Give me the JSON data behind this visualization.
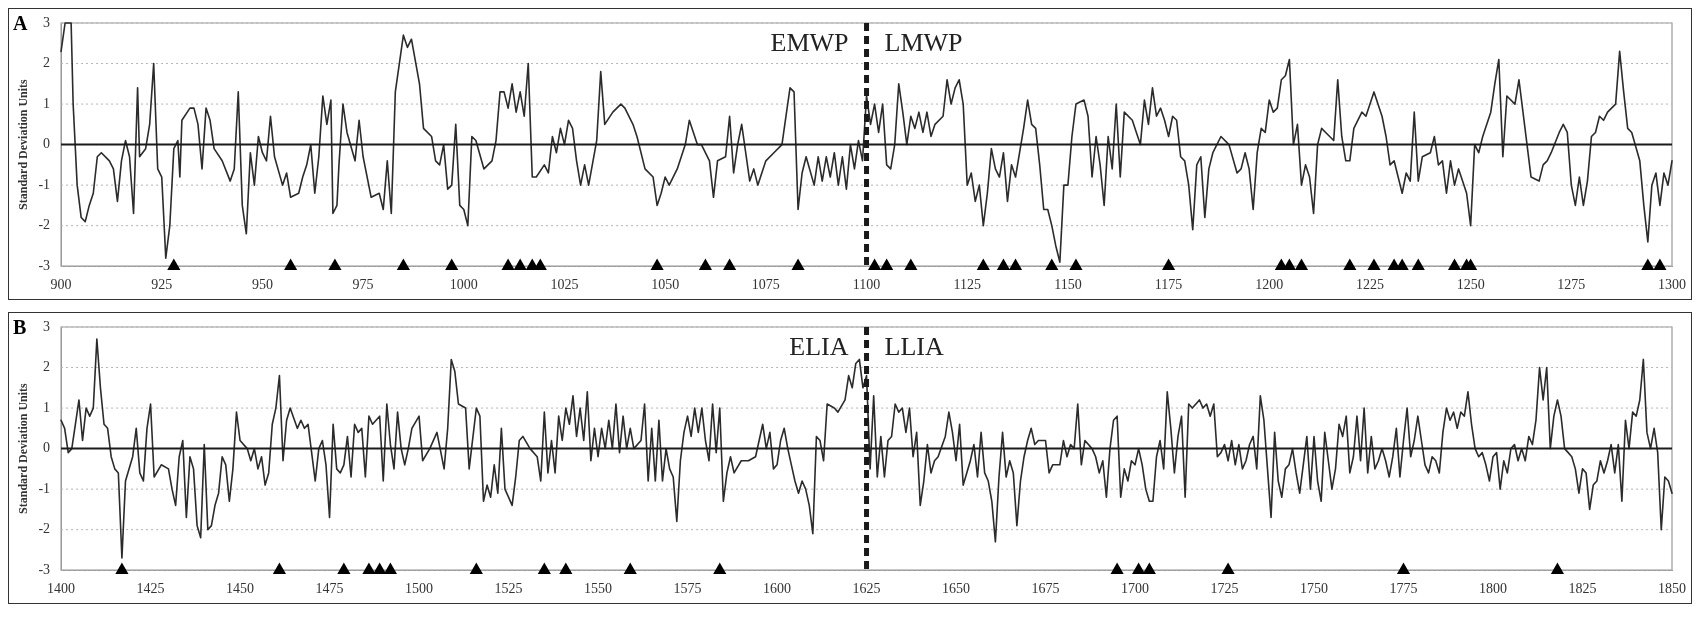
{
  "chart_data": [
    {
      "type": "line",
      "title": "A",
      "ylabel": "Standard Deviation Units",
      "xlim": [
        900,
        1300
      ],
      "xticks": [
        900,
        925,
        950,
        975,
        1000,
        1025,
        1050,
        1075,
        1100,
        1125,
        1150,
        1175,
        1200,
        1225,
        1250,
        1275,
        1300
      ],
      "ylim": [
        -3,
        3
      ],
      "yticks": [
        -3,
        -2,
        -1,
        0,
        1,
        2,
        3
      ],
      "grid": "y",
      "marker": "none",
      "annotations": [
        "EMWP",
        "LMWP"
      ],
      "ref_lines": [
        {
          "axis": "x",
          "value": 1100,
          "color": "#1a1a1a",
          "line_style": "dashed"
        },
        {
          "axis": "y",
          "value": 0,
          "color": "#1a1a1a",
          "line_style": "solid"
        }
      ],
      "series": [
        {
          "color": "#2b2b2b",
          "x": [
            900,
            901,
            902.5,
            903,
            904,
            905,
            906,
            907,
            908,
            909,
            910,
            912,
            913,
            914,
            915,
            916,
            917,
            918,
            919,
            919.5,
            921,
            922,
            923,
            924,
            925,
            926,
            927,
            928,
            929,
            929.5,
            930,
            932,
            933,
            934,
            935,
            936,
            937,
            938,
            940,
            942,
            943,
            944,
            945,
            946,
            947,
            948,
            949,
            950,
            951,
            952,
            953,
            955,
            956,
            957,
            959,
            960,
            961,
            962,
            963,
            964,
            965,
            966,
            967,
            967.5,
            968.5,
            969,
            970,
            971,
            973,
            974,
            975,
            977,
            979,
            980,
            981,
            982,
            983,
            985,
            986,
            987,
            989,
            990,
            992,
            993,
            994,
            995,
            996,
            997,
            998,
            999,
            1000,
            1001,
            1002,
            1003,
            1005,
            1007,
            1008,
            1009,
            1010,
            1011,
            1012,
            1013,
            1014,
            1015,
            1016,
            1017,
            1018,
            1020,
            1021,
            1022,
            1023,
            1024,
            1025,
            1026,
            1027,
            1028,
            1029,
            1030,
            1031,
            1033,
            1034,
            1035,
            1037,
            1039,
            1040,
            1042,
            1043,
            1045,
            1047,
            1048,
            1049,
            1050,
            1051,
            1053,
            1055,
            1056,
            1058,
            1059,
            1061,
            1062,
            1063,
            1065,
            1066,
            1067,
            1068,
            1069,
            1071,
            1072,
            1073,
            1075,
            1077,
            1079,
            1080,
            1081,
            1082,
            1083,
            1084,
            1085,
            1087,
            1088,
            1089,
            1090,
            1091,
            1092,
            1093,
            1094,
            1095,
            1096,
            1097,
            1098,
            1099,
            1100,
            1101,
            1102,
            1103,
            1104,
            1105,
            1106,
            1107,
            1108,
            1109,
            1110,
            1111,
            1112,
            1113,
            1114,
            1115,
            1116,
            1117,
            1119,
            1120,
            1121,
            1122,
            1123,
            1124,
            1125,
            1126,
            1127,
            1128,
            1129,
            1130,
            1131,
            1132,
            1133,
            1134,
            1135,
            1136,
            1137,
            1139,
            1140,
            1141,
            1142,
            1143,
            1144,
            1145,
            1146,
            1147,
            1148,
            1149,
            1150,
            1151,
            1152,
            1154,
            1155,
            1156,
            1157,
            1158,
            1159,
            1160,
            1161,
            1162,
            1163,
            1164,
            1166,
            1167,
            1168,
            1169,
            1170,
            1171,
            1172,
            1173,
            1174,
            1175,
            1176,
            1177,
            1178,
            1179,
            1180,
            1181,
            1182,
            1183,
            1184,
            1185,
            1186,
            1188,
            1190,
            1192,
            1193,
            1194,
            1195,
            1196,
            1197,
            1198,
            1199,
            1200,
            1201,
            1202,
            1203,
            1204,
            1205,
            1206,
            1207,
            1208,
            1209,
            1210,
            1211,
            1212,
            1213,
            1214,
            1216,
            1217,
            1218,
            1219,
            1220,
            1221,
            1223,
            1224,
            1226,
            1228,
            1229,
            1230,
            1231,
            1232,
            1233,
            1234,
            1235,
            1236,
            1237,
            1238,
            1240,
            1241,
            1242,
            1243,
            1244,
            1245,
            1246,
            1247,
            1248,
            1249,
            1250,
            1251,
            1252,
            1253,
            1255,
            1256,
            1257,
            1258,
            1259,
            1261,
            1262,
            1263,
            1265,
            1267,
            1268,
            1269,
            1270,
            1272,
            1273,
            1274,
            1275,
            1276,
            1277,
            1278,
            1279,
            1280,
            1281,
            1282,
            1283,
            1284,
            1286,
            1287,
            1288,
            1289,
            1290,
            1292,
            1293,
            1294,
            1295,
            1296,
            1297,
            1298,
            1299,
            1300
          ],
          "values": [
            2.3,
            3,
            3,
            1,
            -1,
            -1.8,
            -1.9,
            -1.5,
            -1.2,
            -0.3,
            -0.2,
            -0.4,
            -0.6,
            -1.4,
            -0.4,
            0.1,
            -0.3,
            -1.7,
            1.4,
            -0.3,
            -0.1,
            0.5,
            2.0,
            -0.6,
            -0.8,
            -2.8,
            -2.0,
            -0.1,
            0.1,
            -0.8,
            0.6,
            0.9,
            0.9,
            0.5,
            -0.6,
            0.9,
            0.6,
            -0.1,
            -0.4,
            -0.9,
            -0.6,
            1.3,
            -1.5,
            -2.2,
            -0.2,
            -1.0,
            0.2,
            -0.2,
            -0.4,
            0.7,
            -0.3,
            -1.0,
            -0.7,
            -1.3,
            -1.2,
            -0.8,
            -0.5,
            0.0,
            -1.2,
            -0.3,
            1.2,
            0.5,
            1.1,
            -1.7,
            -1.5,
            -0.5,
            1.0,
            0.3,
            -0.4,
            0.6,
            -0.3,
            -1.3,
            -1.2,
            -1.6,
            -0.4,
            -1.7,
            1.3,
            2.7,
            2.4,
            2.6,
            1.5,
            0.4,
            0.2,
            -0.4,
            -0.5,
            0,
            -1.1,
            -1.0,
            0.5,
            -1.5,
            -1.6,
            -2.0,
            0.2,
            0.1,
            -0.6,
            -0.4,
            0.1,
            1.3,
            1.3,
            0.9,
            1.5,
            0.8,
            1.3,
            0.7,
            2.0,
            -0.8,
            -0.8,
            -0.5,
            -0.7,
            0.2,
            -0.2,
            0.4,
            0.0,
            0.6,
            0.4,
            -0.4,
            -1.0,
            -0.5,
            -1.0,
            0.1,
            1.8,
            0.5,
            0.8,
            1.0,
            0.9,
            0.5,
            0.2,
            -0.6,
            -0.8,
            -1.5,
            -1.2,
            -0.8,
            -1.0,
            -0.6,
            0.0,
            0.6,
            0.0,
            0.0,
            -0.4,
            -1.3,
            -0.4,
            -0.3,
            0.7,
            -0.7,
            0.0,
            0.5,
            -0.9,
            -0.6,
            -1.0,
            -0.4,
            -0.2,
            0.0,
            0.7,
            1.4,
            1.3,
            -1.6,
            -0.7,
            -0.3,
            -1.0,
            -0.3,
            -0.9,
            -0.3,
            -0.8,
            -0.2,
            -1.0,
            -0.3,
            -1.1,
            0.0,
            -0.6,
            0.1,
            -0.4,
            1.2,
            0.5,
            1.0,
            0.3,
            1.0,
            -0.5,
            -0.6,
            0.0,
            1.5,
            0.8,
            0.0,
            0.7,
            0.4,
            0.8,
            0.3,
            0.8,
            0.2,
            0.5,
            0.7,
            1.6,
            1.0,
            1.4,
            1.6,
            1.0,
            -1.0,
            -0.7,
            -1.4,
            -1.0,
            -2.0,
            -1.2,
            -0.1,
            -0.6,
            -0.8,
            -0.2,
            -1.4,
            -0.5,
            -0.8,
            0.4,
            1.1,
            0.5,
            0.4,
            -0.5,
            -1.6,
            -1.6,
            -2.0,
            -2.5,
            -2.9,
            -1.0,
            -1.0,
            0.2,
            1.0,
            1.1,
            0.7,
            -0.8,
            0.2,
            -0.5,
            -1.5,
            0.2,
            -0.6,
            1.0,
            -0.8,
            0.8,
            0.6,
            0.3,
            0.0,
            1.1,
            0.5,
            1.4,
            0.7,
            0.9,
            0.6,
            0.2,
            0.7,
            0.6,
            -0.3,
            -0.4,
            -1.0,
            -2.1,
            -0.5,
            -0.3,
            -1.8,
            -0.6,
            -0.2,
            0.2,
            0.0,
            -0.7,
            -0.6,
            -0.2,
            -0.6,
            -1.6,
            -0.2,
            0.4,
            0.3,
            1.1,
            0.8,
            0.9,
            1.6,
            1.7,
            2.1,
            0.0,
            0.5,
            -1.0,
            -0.5,
            -0.8,
            -1.7,
            0.0,
            0.4,
            0.3,
            0.1,
            1.6,
            0.2,
            -0.4,
            -0.4,
            0.4,
            0.8,
            0.7,
            1.3,
            0.7,
            0.2,
            -0.5,
            -0.4,
            -0.8,
            -1.2,
            -0.7,
            -0.9,
            0.8,
            -0.9,
            -0.3,
            -0.2,
            0.2,
            -0.5,
            -0.4,
            -1.2,
            -0.4,
            -1.0,
            -0.6,
            -0.9,
            -1.2,
            -2.0,
            0.0,
            -0.2,
            0.2,
            0.8,
            1.5,
            2.1,
            -0.3,
            1.2,
            1.0,
            1.6,
            0.8,
            -0.8,
            -0.9,
            -0.5,
            -0.4,
            -0.2,
            0.3,
            0.5,
            0.3,
            -1.0,
            -1.5,
            -0.8,
            -1.5,
            -0.9,
            0.2,
            0.3,
            0.7,
            0.6,
            0.8,
            1.0,
            2.3,
            1.3,
            0.4,
            0.3,
            -0.4,
            -1.5,
            -2.4,
            -1.0,
            -0.7,
            -1.5,
            -0.7,
            -1.0,
            -0.4
          ]
        },
        {
          "type": "scatter",
          "color": "#000000",
          "marker": "triangle",
          "x": [
            928,
            957,
            968,
            985,
            997,
            1011,
            1014,
            1017,
            1019,
            1048,
            1060,
            1066,
            1083,
            1102,
            1105,
            1111,
            1129,
            1134,
            1137,
            1146,
            1152,
            1175,
            1203,
            1205,
            1208,
            1220,
            1226,
            1231,
            1233,
            1237,
            1246,
            1249,
            1250,
            1294,
            1297
          ],
          "values": [
            -3,
            -3,
            -3,
            -3,
            -3,
            -3,
            -3,
            -3,
            -3,
            -3,
            -3,
            -3,
            -3,
            -3,
            -3,
            -3,
            -3,
            -3,
            -3,
            -3,
            -3,
            -3,
            -3,
            -3,
            -3,
            -3,
            -3,
            -3,
            -3,
            -3,
            -3,
            -3,
            -3,
            -3,
            -3
          ]
        }
      ]
    },
    {
      "type": "line",
      "title": "B",
      "ylabel": "Standard Deviation Units",
      "xlim": [
        1400,
        1850
      ],
      "xticks": [
        1400,
        1425,
        1450,
        1475,
        1500,
        1525,
        1550,
        1575,
        1600,
        1625,
        1650,
        1675,
        1700,
        1725,
        1750,
        1775,
        1800,
        1825,
        1850
      ],
      "ylim": [
        -3,
        3
      ],
      "yticks": [
        -3,
        -2,
        -1,
        0,
        1,
        2,
        3
      ],
      "grid": "y",
      "marker": "none",
      "annotations": [
        "ELIA",
        "LLIA"
      ],
      "ref_lines": [
        {
          "axis": "x",
          "value": 1625,
          "color": "#1a1a1a",
          "line_style": "dashed"
        },
        {
          "axis": "y",
          "value": 0,
          "color": "#1a1a1a",
          "line_style": "solid"
        }
      ],
      "series": [
        {
          "color": "#2b2b2b",
          "x": [
            1400,
            1401,
            1402,
            1403,
            1404,
            1405,
            1406,
            1407,
            1408,
            1409,
            1410,
            1411,
            1412,
            1413,
            1414,
            1415,
            1416,
            1417,
            1418,
            1420,
            1421,
            1422,
            1423,
            1424,
            1425,
            1426,
            1428,
            1430,
            1431,
            1432,
            1433,
            1434,
            1435,
            1436,
            1437,
            1438,
            1439,
            1440,
            1441,
            1442,
            1443,
            1444,
            1445,
            1446,
            1447,
            1448,
            1449,
            1450,
            1452,
            1453,
            1454,
            1455,
            1456,
            1457,
            1458,
            1459,
            1460,
            1461,
            1462,
            1463,
            1464,
            1466,
            1467,
            1468,
            1469,
            1471,
            1472,
            1473,
            1474,
            1475,
            1476,
            1477,
            1478,
            1479,
            1480,
            1481,
            1482,
            1483,
            1484,
            1485,
            1486,
            1487,
            1488,
            1489,
            1490,
            1491,
            1492,
            1493,
            1494,
            1495,
            1496,
            1497,
            1498,
            1500,
            1501,
            1503,
            1505,
            1507,
            1508,
            1509,
            1510,
            1511,
            1513,
            1514,
            1516,
            1517,
            1518,
            1519,
            1520,
            1521,
            1522,
            1523,
            1524,
            1526,
            1527,
            1528,
            1529,
            1531,
            1533,
            1534,
            1535,
            1536,
            1537,
            1538,
            1539,
            1540,
            1541,
            1542,
            1543,
            1544,
            1545,
            1546,
            1547,
            1548,
            1549,
            1550,
            1551,
            1552,
            1553,
            1554,
            1555,
            1556,
            1557,
            1558,
            1559,
            1560,
            1562,
            1563,
            1564,
            1565,
            1566,
            1567,
            1568,
            1569,
            1570,
            1571,
            1572,
            1573,
            1574,
            1575,
            1576,
            1577,
            1578,
            1579,
            1580,
            1581,
            1582,
            1583,
            1584,
            1585,
            1586,
            1587,
            1588,
            1590,
            1592,
            1594,
            1595,
            1596,
            1597,
            1598,
            1599,
            1600,
            1601,
            1602,
            1603,
            1604,
            1605,
            1606,
            1607,
            1608,
            1609,
            1610,
            1611,
            1612,
            1613,
            1614,
            1616,
            1617,
            1619,
            1620,
            1621,
            1622,
            1623,
            1624,
            1625,
            1626,
            1627,
            1628,
            1629,
            1630,
            1631,
            1632,
            1633,
            1634,
            1635,
            1636,
            1637,
            1638,
            1639,
            1640,
            1641,
            1642,
            1643,
            1644,
            1645,
            1647,
            1648,
            1649,
            1650,
            1651,
            1652,
            1653,
            1654,
            1655,
            1656,
            1657,
            1658,
            1659,
            1660,
            1661,
            1662,
            1663,
            1664,
            1665,
            1666,
            1667,
            1668,
            1669,
            1670,
            1671,
            1672,
            1673,
            1675,
            1676,
            1677,
            1679,
            1680,
            1681,
            1682,
            1683,
            1684,
            1685,
            1686,
            1688,
            1689,
            1690,
            1691,
            1692,
            1693,
            1694,
            1695,
            1696,
            1697,
            1698,
            1699,
            1700,
            1701,
            1702,
            1703,
            1704,
            1705,
            1706,
            1707,
            1708,
            1709,
            1710,
            1711,
            1712,
            1713,
            1714,
            1715,
            1716,
            1717,
            1718,
            1719,
            1720,
            1721,
            1722,
            1723,
            1724,
            1725,
            1726,
            1727,
            1728,
            1729,
            1730,
            1731,
            1732,
            1733,
            1734,
            1735,
            1736,
            1737,
            1738,
            1739,
            1740,
            1741,
            1742,
            1743,
            1744,
            1745,
            1746,
            1747,
            1748,
            1749,
            1750,
            1751,
            1752,
            1753,
            1754,
            1755,
            1756,
            1757,
            1758,
            1759,
            1760,
            1761,
            1762,
            1763,
            1764,
            1765,
            1766,
            1767,
            1768,
            1769,
            1770,
            1771,
            1772,
            1773,
            1774,
            1775,
            1776,
            1777,
            1778,
            1779,
            1780,
            1781,
            1782,
            1783,
            1784,
            1785,
            1786,
            1787,
            1788,
            1789,
            1790,
            1791,
            1792,
            1793,
            1794,
            1795,
            1796,
            1797,
            1798,
            1799,
            1800,
            1801,
            1802,
            1803,
            1804,
            1805,
            1806,
            1807,
            1808,
            1809,
            1810,
            1811,
            1812,
            1813,
            1814,
            1815,
            1816,
            1817,
            1818,
            1819,
            1820,
            1821,
            1822,
            1823,
            1824,
            1825,
            1826,
            1827,
            1828,
            1829,
            1830,
            1831,
            1832,
            1833,
            1834,
            1835,
            1836,
            1837,
            1838,
            1839,
            1840,
            1841,
            1842,
            1843,
            1844,
            1845,
            1846,
            1847,
            1848,
            1849,
            1850
          ],
          "values": [
            0.7,
            0.5,
            -0.1,
            0.0,
            0.6,
            1.2,
            0.2,
            1.0,
            0.8,
            1.0,
            2.7,
            1.5,
            0.6,
            0.5,
            -0.2,
            -0.5,
            -0.6,
            -2.7,
            -0.8,
            -0.2,
            0.5,
            -0.6,
            -0.8,
            0.5,
            1.1,
            -0.7,
            -0.4,
            -0.5,
            -1.0,
            -1.4,
            -0.2,
            0.2,
            -1.7,
            -0.2,
            -0.5,
            -1.9,
            -2.2,
            0.1,
            -2.0,
            -1.9,
            -1.4,
            -1.1,
            -0.2,
            -0.4,
            -1.3,
            -0.5,
            0.9,
            0.2,
            0.0,
            -0.3,
            0.0,
            -0.5,
            -0.2,
            -0.9,
            -0.6,
            0.6,
            1.0,
            1.8,
            -0.3,
            0.7,
            1.0,
            0.5,
            0.7,
            0.5,
            0.6,
            -0.8,
            0.0,
            0.2,
            -0.4,
            -1.7,
            0.6,
            -0.5,
            -0.6,
            -0.4,
            0.3,
            -0.7,
            0.6,
            0.4,
            0.5,
            -0.7,
            0.8,
            0.6,
            0.7,
            0.8,
            -0.8,
            1.1,
            0.1,
            -0.5,
            0.9,
            0.0,
            -0.4,
            0.0,
            0.5,
            0.8,
            -0.3,
            0.0,
            0.4,
            -0.5,
            0.5,
            2.2,
            1.9,
            1.1,
            1.0,
            -0.5,
            1.0,
            0.8,
            -1.3,
            -0.9,
            -1.2,
            -0.4,
            -1.1,
            0.5,
            -1.0,
            -1.4,
            -0.7,
            0.2,
            0.3,
            0.0,
            -0.2,
            -0.8,
            0.9,
            -0.6,
            0.2,
            -0.6,
            0.8,
            0.2,
            1.0,
            0.6,
            1.3,
            0.3,
            1.0,
            0.2,
            1.4,
            -0.3,
            0.5,
            -0.2,
            0.5,
            0.0,
            0.7,
            0.0,
            1.1,
            -0.1,
            0.8,
            0.0,
            0.5,
            0.0,
            0.2,
            1.1,
            -0.8,
            0.5,
            -0.8,
            0.7,
            -0.8,
            0.0,
            -0.5,
            -0.7,
            -1.8,
            -0.3,
            0.4,
            0.8,
            0.3,
            1.0,
            0.4,
            1.0,
            0.2,
            -0.3,
            1.1,
            -0.1,
            1.0,
            -1.3,
            -0.6,
            -0.2,
            -0.6,
            -0.3,
            -0.3,
            -0.2,
            0.2,
            0.6,
            0.0,
            0.4,
            -0.5,
            -0.4,
            0.2,
            0.5,
            0.0,
            -0.4,
            -0.8,
            -1.1,
            -0.8,
            -1.0,
            -1.4,
            -2.1,
            0.3,
            0.2,
            -0.3,
            1.1,
            1.0,
            0.9,
            1.2,
            1.8,
            1.5,
            2.1,
            2.2,
            1.5,
            1.8,
            -0.5,
            1.3,
            -0.7,
            0.3,
            -0.7,
            0.2,
            0.3,
            1.1,
            0.9,
            1.0,
            0.4,
            1.0,
            -0.2,
            0.4,
            -1.4,
            -0.8,
            0.1,
            -0.6,
            -0.3,
            -0.2,
            0.3,
            0.9,
            0.4,
            -0.3,
            0.6,
            -0.9,
            -0.6,
            -0.3,
            0.1,
            -0.7,
            0.4,
            -0.6,
            -0.8,
            -1.3,
            -2.3,
            -0.7,
            0.4,
            -0.7,
            -0.3,
            -0.6,
            -1.9,
            -0.8,
            -0.2,
            0.2,
            0.5,
            0.1,
            0.2,
            0.2,
            -0.6,
            -0.4,
            -0.4,
            0.2,
            -0.2,
            0.1,
            0.0,
            1.1,
            -0.4,
            0.2,
            0.0,
            -0.2,
            -0.6,
            -0.3,
            -1.2,
            0.0,
            0.7,
            0.8,
            -1.2,
            -0.5,
            -0.8,
            -0.3,
            -0.4,
            0.0,
            -0.4,
            -1.0,
            -1.3,
            -1.3,
            -0.2,
            0.2,
            -0.5,
            1.4,
            0.5,
            -0.6,
            0.3,
            0.8,
            -1.2,
            1.1,
            1.0,
            1.1,
            1.2,
            1.0,
            1.1,
            0.8,
            1.1,
            -0.2,
            -0.1,
            0.1,
            -0.3,
            0.2,
            -0.4,
            0.1,
            -0.5,
            -0.3,
            0.1,
            0.3,
            -0.5,
            1.3,
            0.7,
            -0.5,
            -1.7,
            0.4,
            -0.8,
            -1.2,
            -0.5,
            -0.4,
            0.0,
            -0.6,
            -1.1,
            -0.4,
            0.3,
            -1.0,
            0.3,
            -0.8,
            -1.3,
            0.4,
            -0.3,
            -1.0,
            -0.5,
            0.6,
            0.3,
            0.8,
            -0.6,
            -0.2,
            0.8,
            -0.3,
            1.0,
            -0.6,
            0.3,
            -0.5,
            -0.3,
            0.0,
            -0.3,
            -0.7,
            -0.2,
            0.5,
            -0.7,
            0.2,
            1.0,
            -0.2,
            0.2,
            0.8,
            0.2,
            -0.4,
            -0.6,
            -0.2,
            -0.3,
            -0.6,
            0.4,
            1.0,
            0.7,
            0.9,
            0.5,
            0.9,
            0.8,
            1.4,
            0.6,
            0.0,
            -0.2,
            -0.1,
            -0.4,
            -0.8,
            -0.2,
            -0.1,
            -1.0,
            -0.3,
            -0.6,
            0.0,
            0.1,
            -0.3,
            0.0,
            -0.3,
            0.3,
            0.1,
            0.7,
            2.0,
            1.2,
            2.0,
            0.0,
            0.8,
            1.2,
            0.8,
            0.0,
            -0.1,
            -0.2,
            -0.5,
            -1.1,
            -0.5,
            -0.6,
            -1.5,
            -0.9,
            -0.8,
            -0.3,
            -0.6,
            -0.3,
            0.1,
            -0.6,
            0.1,
            -1.3,
            0.7,
            0.0,
            0.9,
            0.8,
            1.2,
            2.2,
            0.4,
            0.0,
            0.5,
            -0.1,
            -2.0,
            -0.7,
            -0.8,
            -1.1
          ]
        },
        {
          "type": "scatter",
          "color": "#000000",
          "marker": "triangle",
          "x": [
            1417,
            1461,
            1479,
            1486,
            1489,
            1492,
            1516,
            1535,
            1541,
            1559,
            1584,
            1695,
            1701,
            1704,
            1726,
            1775,
            1818
          ],
          "values": [
            -3,
            -3,
            -3,
            -3,
            -3,
            -3,
            -3,
            -3,
            -3,
            -3,
            -3,
            -3,
            -3,
            -3,
            -3,
            -3,
            -3
          ]
        }
      ]
    }
  ]
}
